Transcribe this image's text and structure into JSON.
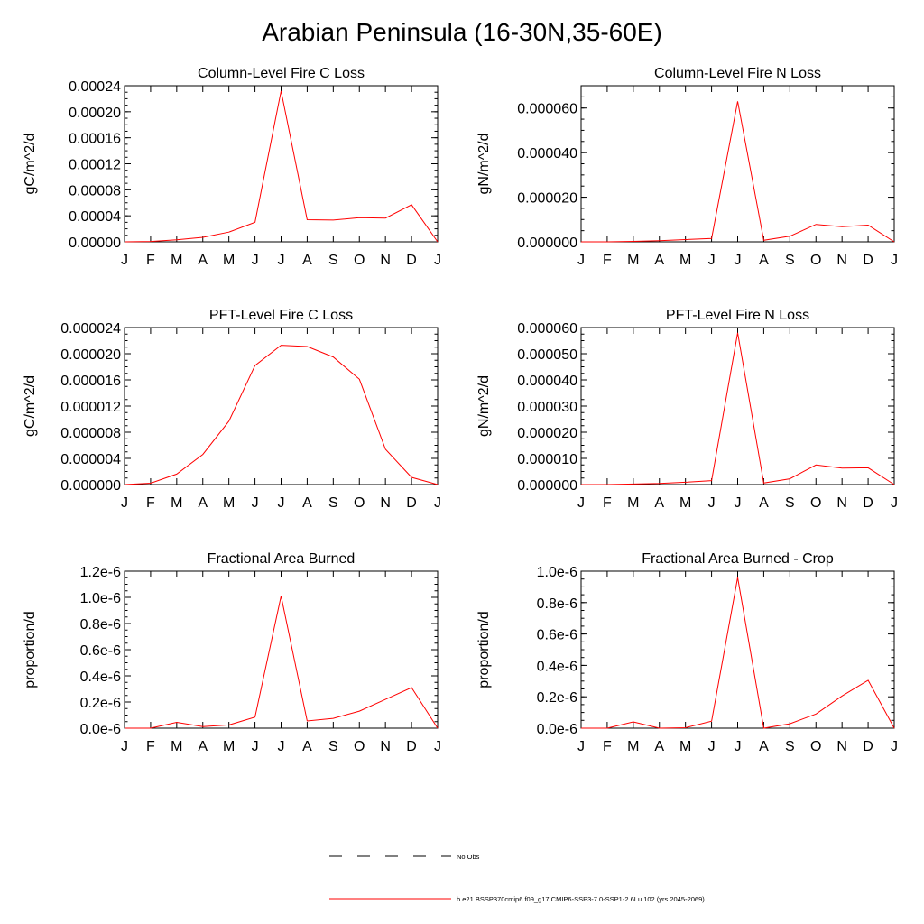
{
  "page": {
    "title": "Arabian Peninsula (16-30N,35-60E)"
  },
  "legend": [
    {
      "label": "No Obs",
      "style": "dashed",
      "color": "#000000"
    },
    {
      "label": "b.e21.BSSP370cmip6.f09_g17.CMIP6-SSP3-7.0-SSP1-2.6Lu.102 (yrs 2045-2069)",
      "style": "solid",
      "color": "#ff0000"
    }
  ],
  "colors": {
    "series": "#ff0000",
    "axis": "#000000"
  },
  "chart_data": [
    {
      "type": "line",
      "title": "Column-Level Fire C Loss",
      "ylabel": "gC/m^2/d",
      "xlabel": "",
      "categories": [
        "J",
        "F",
        "M",
        "A",
        "M",
        "J",
        "J",
        "A",
        "S",
        "O",
        "N",
        "D",
        "J"
      ],
      "ylim": [
        0,
        0.00024
      ],
      "yticks": [
        "0.00000",
        "0.00004",
        "0.00008",
        "0.00012",
        "0.00016",
        "0.00020",
        "0.00024"
      ],
      "yminor": 4,
      "series": [
        {
          "values": [
            0.0,
            5e-07,
            3e-06,
            7e-06,
            1.5e-05,
            3e-05,
            0.000232,
            3.4e-05,
            3.35e-05,
            3.7e-05,
            3.65e-05,
            5.7e-05,
            0.0
          ]
        }
      ]
    },
    {
      "type": "line",
      "title": "Column-Level Fire N Loss",
      "ylabel": "gN/m^2/d",
      "xlabel": "",
      "categories": [
        "J",
        "F",
        "M",
        "A",
        "M",
        "J",
        "J",
        "A",
        "S",
        "O",
        "N",
        "D",
        "J"
      ],
      "ylim": [
        0,
        7e-05
      ],
      "yticks": [
        "0.000000",
        "0.000020",
        "0.000040",
        "0.000060"
      ],
      "ytickvals": [
        0,
        2e-05,
        4e-05,
        6e-05
      ],
      "yminor": 4,
      "series": [
        {
          "values": [
            0.0,
            0.0,
            2e-07,
            5e-07,
            1e-06,
            1.5e-06,
            6.3e-05,
            7e-07,
            2.5e-06,
            7.8e-06,
            6.8e-06,
            7.5e-06,
            0.0
          ]
        }
      ]
    },
    {
      "type": "line",
      "title": "PFT-Level Fire C Loss",
      "ylabel": "gC/m^2/d",
      "xlabel": "",
      "categories": [
        "J",
        "F",
        "M",
        "A",
        "M",
        "J",
        "J",
        "A",
        "S",
        "O",
        "N",
        "D",
        "J"
      ],
      "ylim": [
        0,
        2.4e-05
      ],
      "yticks": [
        "0.000000",
        "0.000004",
        "0.000008",
        "0.000012",
        "0.000016",
        "0.000020",
        "0.000024"
      ],
      "yminor": 4,
      "series": [
        {
          "values": [
            0.0,
            2e-07,
            1.6e-06,
            4.6e-06,
            9.7e-06,
            1.82e-05,
            2.13e-05,
            2.11e-05,
            1.95e-05,
            1.61e-05,
            5.4e-06,
            1.1e-06,
            0.0
          ]
        }
      ]
    },
    {
      "type": "line",
      "title": "PFT-Level Fire N Loss",
      "ylabel": "gN/m^2/d",
      "xlabel": "",
      "categories": [
        "J",
        "F",
        "M",
        "A",
        "M",
        "J",
        "J",
        "A",
        "S",
        "O",
        "N",
        "D",
        "J"
      ],
      "ylim": [
        0,
        6e-05
      ],
      "yticks": [
        "0.000000",
        "0.000010",
        "0.000020",
        "0.000030",
        "0.000040",
        "0.000050",
        "0.000060"
      ],
      "yminor": 4,
      "series": [
        {
          "values": [
            0.0,
            0.0,
            2e-07,
            4e-07,
            9e-07,
            1.5e-06,
            5.8e-05,
            6e-07,
            2.2e-06,
            7.5e-06,
            6.3e-06,
            6.4e-06,
            0.0
          ]
        }
      ]
    },
    {
      "type": "line",
      "title": "Fractional Area Burned",
      "ylabel": "proportion/d",
      "xlabel": "",
      "categories": [
        "J",
        "F",
        "M",
        "A",
        "M",
        "J",
        "J",
        "A",
        "S",
        "O",
        "N",
        "D",
        "J"
      ],
      "ylim": [
        0,
        1.2e-06
      ],
      "yticks": [
        "0.0e-6",
        "0.2e-6",
        "0.4e-6",
        "0.6e-6",
        "0.8e-6",
        "1.0e-6",
        "1.2e-6"
      ],
      "yminor": 4,
      "series": [
        {
          "values": [
            0.0,
            0.0,
            4.5e-08,
            1.2e-08,
            2.5e-08,
            8.5e-08,
            1.01e-06,
            5.5e-08,
            7.5e-08,
            1.3e-07,
            2.2e-07,
            3.1e-07,
            0.0
          ]
        }
      ]
    },
    {
      "type": "line",
      "title": "Fractional Area Burned - Crop",
      "ylabel": "proportion/d",
      "xlabel": "",
      "categories": [
        "J",
        "F",
        "M",
        "A",
        "M",
        "J",
        "J",
        "A",
        "S",
        "O",
        "N",
        "D",
        "J"
      ],
      "ylim": [
        0,
        1e-06
      ],
      "yticks": [
        "0.0e-6",
        "0.2e-6",
        "0.4e-6",
        "0.6e-6",
        "0.8e-6",
        "1.0e-6"
      ],
      "yminor": 4,
      "series": [
        {
          "values": [
            0.0,
            0.0,
            4e-08,
            0.0,
            3e-09,
            4.5e-08,
            9.6e-07,
            0.0,
            2.8e-08,
            9e-08,
            2.05e-07,
            3.05e-07,
            0.0
          ]
        }
      ]
    }
  ]
}
